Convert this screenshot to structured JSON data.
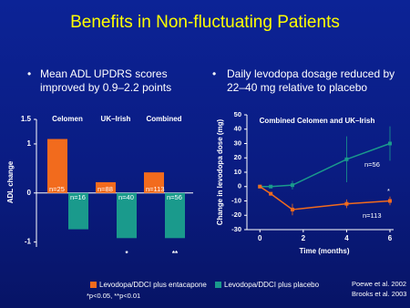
{
  "title": "Benefits in Non-fluctuating Patients",
  "bullets": [
    "Mean ADL UPDRS scores improved by 0.9–2.2 points",
    "Daily levodopa dosage reduced by 22–40 mg relative to placebo"
  ],
  "footnote": "*p<0.05, **p<0.01",
  "references": [
    "Poewe et al. 2002",
    "Brooks et al. 2003"
  ],
  "chart_data": [
    {
      "type": "bar",
      "ylabel": "ADL change",
      "categories": [
        "Celomen",
        "UK–Irish",
        "Combined"
      ],
      "ylim": [
        -1.1,
        1.5
      ],
      "yticks": [
        -1,
        0,
        1,
        1.5
      ],
      "significance": [
        null,
        "*",
        "**"
      ],
      "series": [
        {
          "name": "Levodopa/DDCI plus entacapone",
          "color": "#f26b1d",
          "values": [
            1.1,
            0.22,
            0.42
          ],
          "n_labels": [
            "n=25",
            "n=88",
            "n=113"
          ]
        },
        {
          "name": "Levodopa/DDCI plus placebo",
          "color": "#1a9a8c",
          "values": [
            -0.74,
            -0.92,
            -0.92
          ],
          "n_labels": [
            "n=16",
            "n=40",
            "n=56"
          ]
        }
      ]
    },
    {
      "type": "line",
      "title": "Combined Celomen and UK–Irish",
      "xlabel": "Time (months)",
      "ylabel": "Change in levodopa dose (mg)",
      "x": [
        0,
        0.5,
        1.5,
        4,
        6
      ],
      "xlim": [
        -0.6,
        6
      ],
      "xticks": [
        0,
        2,
        4,
        6
      ],
      "ylim": [
        -30,
        50
      ],
      "yticks": [
        -30,
        -20,
        -10,
        0,
        10,
        20,
        30,
        40,
        50
      ],
      "annotations": [
        "n=56",
        "n=113",
        "*"
      ],
      "series": [
        {
          "color": "#1a9a8c",
          "values": [
            0,
            0,
            1,
            19,
            30
          ],
          "errors": [
            null,
            null,
            3,
            16,
            12
          ]
        },
        {
          "color": "#f26b1d",
          "values": [
            0,
            -5,
            -16,
            -12,
            -10
          ],
          "errors": [
            null,
            null,
            4,
            3,
            3
          ]
        }
      ]
    }
  ]
}
